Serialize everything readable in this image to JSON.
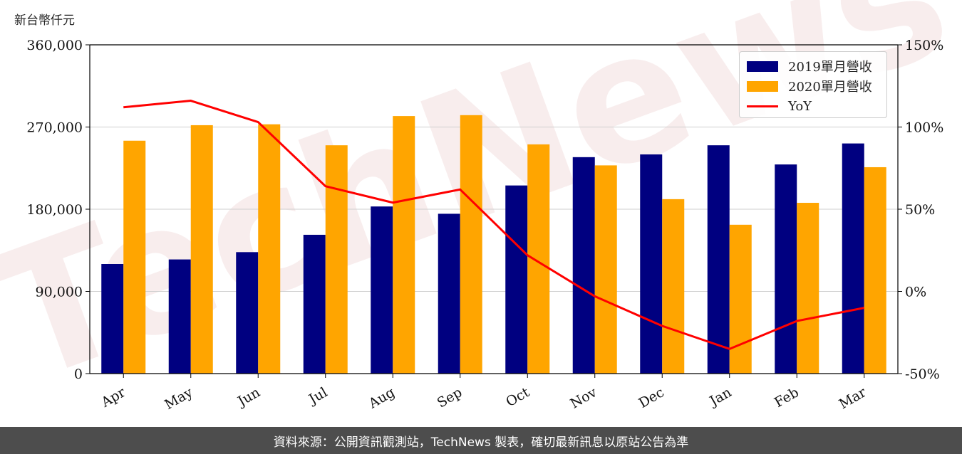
{
  "unit_label": "新台幣仟元",
  "footer": {
    "source": "資料來源：公開資訊觀測站，TechNews 製表，確切最新訊息以原站公告為準"
  },
  "watermark": "TechNews",
  "chart_data": {
    "type": "bar",
    "title": "",
    "categories": [
      "Apr",
      "May",
      "Jun",
      "Jul",
      "Aug",
      "Sep",
      "Oct",
      "Nov",
      "Dec",
      "Jan",
      "Feb",
      "Mar"
    ],
    "series": [
      {
        "name": "2019單月營收",
        "type": "bar",
        "axis": "left",
        "color": "#000080",
        "values": [
          120000,
          125000,
          133000,
          152000,
          183000,
          175000,
          206000,
          237000,
          240000,
          250000,
          229000,
          252000
        ]
      },
      {
        "name": "2020單月營收",
        "type": "bar",
        "axis": "left",
        "color": "#FFA500",
        "values": [
          255000,
          272000,
          273000,
          250000,
          282000,
          283000,
          251000,
          228000,
          191000,
          163000,
          187000,
          226000
        ]
      },
      {
        "name": "YoY",
        "type": "line",
        "axis": "right",
        "color": "#FF0000",
        "values": [
          112,
          116,
          103,
          64,
          54,
          62,
          22,
          -3,
          -21,
          -35,
          -18,
          -10
        ]
      }
    ],
    "y_left": {
      "min": 0,
      "max": 360000,
      "ticks": [
        0,
        90000,
        180000,
        270000,
        360000
      ],
      "tick_labels": [
        "0",
        "90,000",
        "180,000",
        "270,000",
        "360,000"
      ]
    },
    "y_right": {
      "min": -50,
      "max": 150,
      "ticks": [
        -50,
        0,
        50,
        100,
        150
      ],
      "tick_labels": [
        "-50%",
        "0%",
        "50%",
        "100%",
        "150%"
      ]
    },
    "grid": true,
    "legend": "top-right"
  }
}
